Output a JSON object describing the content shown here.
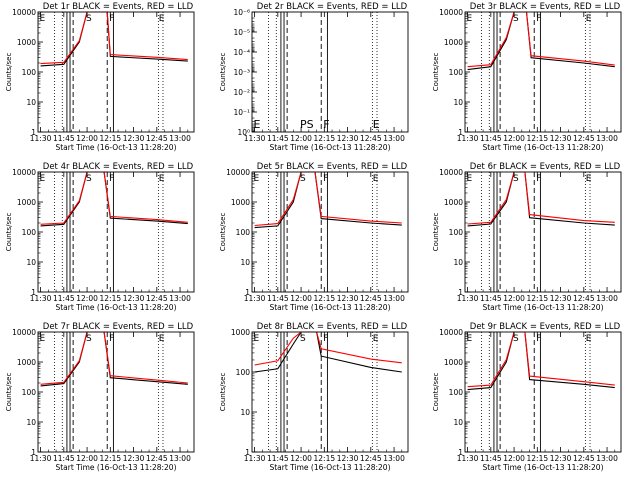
{
  "figure": {
    "background": "#ffffff",
    "axis_color": "#000000",
    "events_color": "#000000",
    "lld_color": "#ff0000"
  },
  "common": {
    "xlabel": "Start Time (16-Oct-13 11:28:20)",
    "ylabel": "Counts/sec",
    "xticks": [
      "11:30",
      "11:45",
      "12:00",
      "12:15",
      "12:30",
      "12:45",
      "13:00"
    ],
    "yticks": [
      "1",
      "10",
      "100",
      "1000",
      "10000"
    ],
    "yscale": "log",
    "ylim": [
      1,
      10000
    ]
  },
  "chart_data": [
    {
      "type": "line",
      "title": "Det 1r BLACK = Events, RED = LLD",
      "markers": [
        {
          "label": "E",
          "time": "11:28"
        },
        {
          "label": "S",
          "time": "11:58"
        },
        {
          "label": "F",
          "time": "12:13"
        },
        {
          "label": "E",
          "time": "12:45"
        }
      ],
      "series": [
        {
          "name": "Events",
          "values": [
            {
              "time": "11:30",
              "counts": 160
            },
            {
              "time": "11:45",
              "counts": 180
            },
            {
              "time": "11:55",
              "counts": 1000
            },
            {
              "time": "12:00",
              "counts": 10000
            },
            {
              "time": "12:13",
              "counts": 10000
            },
            {
              "time": "12:15",
              "counts": 330
            },
            {
              "time": "12:45",
              "counts": 270
            },
            {
              "time": "13:05",
              "counts": 230
            }
          ]
        },
        {
          "name": "LLD",
          "values": [
            {
              "time": "11:30",
              "counts": 190
            },
            {
              "time": "11:45",
              "counts": 210
            },
            {
              "time": "11:55",
              "counts": 1100
            },
            {
              "time": "12:00",
              "counts": 10000
            },
            {
              "time": "12:13",
              "counts": 10000
            },
            {
              "time": "12:15",
              "counts": 380
            },
            {
              "time": "12:45",
              "counts": 310
            },
            {
              "time": "13:05",
              "counts": 260
            }
          ]
        }
      ]
    },
    {
      "type": "line",
      "title": "Det 2r BLACK = Events, RED = LLD",
      "ylim": [
        1,
        1e-06
      ],
      "yticks": [
        "10⁰",
        "10⁻¹",
        "10⁻²",
        "10⁻³",
        "10⁻⁴",
        "10⁻⁵",
        "10⁻⁶"
      ],
      "markers": [
        {
          "label": "E",
          "time": "11:28"
        },
        {
          "label": "PS",
          "time": "11:58"
        },
        {
          "label": "F",
          "time": "12:13"
        },
        {
          "label": "E",
          "time": "12:45"
        }
      ],
      "series": []
    },
    {
      "type": "line",
      "title": "Det 3r BLACK = Events, RED = LLD",
      "markers": [
        {
          "label": "E",
          "time": "11:28"
        },
        {
          "label": "S",
          "time": "11:58"
        },
        {
          "label": "F",
          "time": "12:13"
        },
        {
          "label": "E",
          "time": "12:45"
        }
      ],
      "series": [
        {
          "name": "Events",
          "values": [
            {
              "time": "11:30",
              "counts": 120
            },
            {
              "time": "11:45",
              "counts": 150
            },
            {
              "time": "11:55",
              "counts": 1200
            },
            {
              "time": "12:00",
              "counts": 10000
            },
            {
              "time": "12:08",
              "counts": 10000
            },
            {
              "time": "12:11",
              "counts": 300
            },
            {
              "time": "12:45",
              "counts": 200
            },
            {
              "time": "13:05",
              "counts": 150
            }
          ]
        },
        {
          "name": "LLD",
          "values": [
            {
              "time": "11:30",
              "counts": 150
            },
            {
              "time": "11:45",
              "counts": 175
            },
            {
              "time": "11:55",
              "counts": 1400
            },
            {
              "time": "12:00",
              "counts": 10000
            },
            {
              "time": "12:08",
              "counts": 10000
            },
            {
              "time": "12:11",
              "counts": 350
            },
            {
              "time": "12:45",
              "counts": 230
            },
            {
              "time": "13:05",
              "counts": 170
            }
          ]
        }
      ]
    },
    {
      "type": "line",
      "title": "Det 4r BLACK = Events, RED = LLD",
      "markers": [
        {
          "label": "E",
          "time": "11:28"
        },
        {
          "label": "S",
          "time": "11:58"
        },
        {
          "label": "F",
          "time": "12:13"
        },
        {
          "label": "E",
          "time": "12:45"
        }
      ],
      "series": [
        {
          "name": "Events",
          "values": [
            {
              "time": "11:30",
              "counts": 160
            },
            {
              "time": "11:45",
              "counts": 180
            },
            {
              "time": "11:55",
              "counts": 1000
            },
            {
              "time": "12:00",
              "counts": 10000
            },
            {
              "time": "12:11",
              "counts": 10000
            },
            {
              "time": "12:15",
              "counts": 290
            },
            {
              "time": "12:45",
              "counts": 230
            },
            {
              "time": "13:05",
              "counts": 190
            }
          ]
        },
        {
          "name": "LLD",
          "values": [
            {
              "time": "11:30",
              "counts": 180
            },
            {
              "time": "11:45",
              "counts": 200
            },
            {
              "time": "11:55",
              "counts": 1100
            },
            {
              "time": "12:00",
              "counts": 10000
            },
            {
              "time": "12:11",
              "counts": 10000
            },
            {
              "time": "12:15",
              "counts": 330
            },
            {
              "time": "12:45",
              "counts": 260
            },
            {
              "time": "13:05",
              "counts": 210
            }
          ]
        }
      ]
    },
    {
      "type": "line",
      "title": "Det 5r BLACK = Events, RED = LLD",
      "markers": [
        {
          "label": "E",
          "time": "11:28"
        },
        {
          "label": "S",
          "time": "11:58"
        },
        {
          "label": "F",
          "time": "12:13"
        },
        {
          "label": "E",
          "time": "12:45"
        }
      ],
      "series": [
        {
          "name": "Events",
          "values": [
            {
              "time": "11:30",
              "counts": 140
            },
            {
              "time": "11:45",
              "counts": 160
            },
            {
              "time": "11:55",
              "counts": 1000
            },
            {
              "time": "12:00",
              "counts": 10000
            },
            {
              "time": "12:09",
              "counts": 10000
            },
            {
              "time": "12:13",
              "counts": 280
            },
            {
              "time": "12:45",
              "counts": 200
            },
            {
              "time": "13:05",
              "counts": 170
            }
          ]
        },
        {
          "name": "LLD",
          "values": [
            {
              "time": "11:30",
              "counts": 165
            },
            {
              "time": "11:45",
              "counts": 190
            },
            {
              "time": "11:55",
              "counts": 1200
            },
            {
              "time": "12:00",
              "counts": 10000
            },
            {
              "time": "12:09",
              "counts": 10000
            },
            {
              "time": "12:13",
              "counts": 330
            },
            {
              "time": "12:45",
              "counts": 230
            },
            {
              "time": "13:05",
              "counts": 200
            }
          ]
        }
      ]
    },
    {
      "type": "line",
      "title": "Det 6r BLACK = Events, RED = LLD",
      "markers": [
        {
          "label": "E",
          "time": "11:28"
        },
        {
          "label": "S",
          "time": "11:58"
        },
        {
          "label": "F",
          "time": "12:13"
        },
        {
          "label": "E",
          "time": "12:45"
        }
      ],
      "series": [
        {
          "name": "Events",
          "values": [
            {
              "time": "11:30",
              "counts": 160
            },
            {
              "time": "11:45",
              "counts": 185
            },
            {
              "time": "11:55",
              "counts": 1000
            },
            {
              "time": "12:00",
              "counts": 10000
            },
            {
              "time": "12:07",
              "counts": 10000
            },
            {
              "time": "12:10",
              "counts": 300
            },
            {
              "time": "12:45",
              "counts": 200
            },
            {
              "time": "13:05",
              "counts": 170
            }
          ]
        },
        {
          "name": "LLD",
          "values": [
            {
              "time": "11:30",
              "counts": 185
            },
            {
              "time": "11:45",
              "counts": 210
            },
            {
              "time": "11:55",
              "counts": 1200
            },
            {
              "time": "12:00",
              "counts": 10000
            },
            {
              "time": "12:07",
              "counts": 10000
            },
            {
              "time": "12:10",
              "counts": 380
            },
            {
              "time": "12:45",
              "counts": 240
            },
            {
              "time": "13:05",
              "counts": 210
            }
          ]
        }
      ]
    },
    {
      "type": "line",
      "title": "Det 7r BLACK = Events, RED = LLD",
      "markers": [
        {
          "label": "E",
          "time": "11:28"
        },
        {
          "label": "S",
          "time": "11:58"
        },
        {
          "label": "F",
          "time": "12:13"
        },
        {
          "label": "E",
          "time": "12:45"
        }
      ],
      "series": [
        {
          "name": "Events",
          "values": [
            {
              "time": "11:30",
              "counts": 160
            },
            {
              "time": "11:45",
              "counts": 190
            },
            {
              "time": "11:55",
              "counts": 1000
            },
            {
              "time": "12:00",
              "counts": 10000
            },
            {
              "time": "12:11",
              "counts": 10000
            },
            {
              "time": "12:15",
              "counts": 300
            },
            {
              "time": "12:45",
              "counts": 220
            },
            {
              "time": "13:05",
              "counts": 180
            }
          ]
        },
        {
          "name": "LLD",
          "values": [
            {
              "time": "11:30",
              "counts": 180
            },
            {
              "time": "11:45",
              "counts": 210
            },
            {
              "time": "11:55",
              "counts": 1100
            },
            {
              "time": "12:00",
              "counts": 10000
            },
            {
              "time": "12:11",
              "counts": 10000
            },
            {
              "time": "12:15",
              "counts": 350
            },
            {
              "time": "12:45",
              "counts": 250
            },
            {
              "time": "13:05",
              "counts": 200
            }
          ]
        }
      ]
    },
    {
      "type": "line",
      "title": "Det 8r BLACK = Events, RED = LLD",
      "ylim": [
        1,
        1000
      ],
      "yticks": [
        "1",
        "10",
        "100",
        "1000"
      ],
      "markers": [
        {
          "label": "E",
          "time": "11:28"
        },
        {
          "label": "S",
          "time": "11:58"
        },
        {
          "label": "F",
          "time": "12:13"
        },
        {
          "label": "E",
          "time": "12:45"
        }
      ],
      "series": [
        {
          "name": "Events",
          "values": [
            {
              "time": "11:30",
              "counts": 100
            },
            {
              "time": "11:45",
              "counts": 120
            },
            {
              "time": "11:55",
              "counts": 500
            },
            {
              "time": "12:00",
              "counts": 1000
            },
            {
              "time": "12:10",
              "counts": 1000
            },
            {
              "time": "12:13",
              "counts": 250
            },
            {
              "time": "12:45",
              "counts": 130
            },
            {
              "time": "13:05",
              "counts": 100
            }
          ]
        },
        {
          "name": "LLD",
          "values": [
            {
              "time": "11:30",
              "counts": 150
            },
            {
              "time": "11:45",
              "counts": 190
            },
            {
              "time": "11:55",
              "counts": 700
            },
            {
              "time": "12:00",
              "counts": 1000
            },
            {
              "time": "12:10",
              "counts": 1000
            },
            {
              "time": "12:13",
              "counts": 380
            },
            {
              "time": "12:45",
              "counts": 210
            },
            {
              "time": "13:05",
              "counts": 170
            }
          ]
        }
      ]
    },
    {
      "type": "line",
      "title": "Det 9r BLACK = Events, RED = LLD",
      "markers": [
        {
          "label": "E",
          "time": "11:28"
        },
        {
          "label": "S",
          "time": "11:58"
        },
        {
          "label": "F",
          "time": "12:13"
        },
        {
          "label": "E",
          "time": "12:45"
        }
      ],
      "series": [
        {
          "name": "Events",
          "values": [
            {
              "time": "11:30",
              "counts": 120
            },
            {
              "time": "11:45",
              "counts": 140
            },
            {
              "time": "11:55",
              "counts": 1000
            },
            {
              "time": "12:00",
              "counts": 10000
            },
            {
              "time": "12:07",
              "counts": 10000
            },
            {
              "time": "12:10",
              "counts": 260
            },
            {
              "time": "12:45",
              "counts": 180
            },
            {
              "time": "13:05",
              "counts": 140
            }
          ]
        },
        {
          "name": "LLD",
          "values": [
            {
              "time": "11:30",
              "counts": 150
            },
            {
              "time": "11:45",
              "counts": 170
            },
            {
              "time": "11:55",
              "counts": 1200
            },
            {
              "time": "12:00",
              "counts": 10000
            },
            {
              "time": "12:07",
              "counts": 10000
            },
            {
              "time": "12:10",
              "counts": 340
            },
            {
              "time": "12:45",
              "counts": 220
            },
            {
              "time": "13:05",
              "counts": 170
            }
          ]
        }
      ]
    }
  ]
}
